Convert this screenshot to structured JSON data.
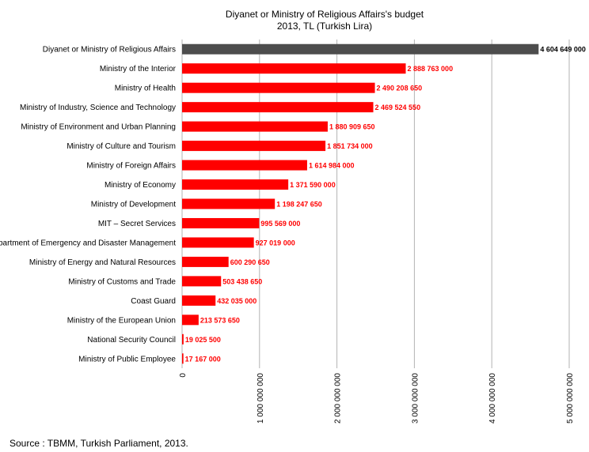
{
  "chart_data": {
    "type": "bar",
    "orientation": "horizontal",
    "title": "Diyanet or Ministry of Religious Affairs's budget",
    "subtitle": "2013, TL (Turkish Lira)",
    "xlim": [
      0,
      5000000000
    ],
    "grid": true,
    "legend": "none",
    "x_ticks": [
      {
        "value": 0,
        "label": "0"
      },
      {
        "value": 1000000000,
        "label": "1 000 000 000"
      },
      {
        "value": 2000000000,
        "label": "2 000 000 000"
      },
      {
        "value": 3000000000,
        "label": "3 000 000 000"
      },
      {
        "value": 4000000000,
        "label": "4 000 000 000"
      },
      {
        "value": 5000000000,
        "label": "5 000 000 000"
      }
    ],
    "bars": [
      {
        "category": "Diyanet or Ministry of Religious Affairs",
        "value": 4604649000,
        "label": "4 604 649 000",
        "color": "#4d4d4d",
        "label_color": "#000000"
      },
      {
        "category": "Ministry of the Interior",
        "value": 2888763000,
        "label": "2 888 763 000",
        "color": "#ff0000",
        "label_color": "#ff0000"
      },
      {
        "category": "Ministry of Health",
        "value": 2490208650,
        "label": "2 490 208 650",
        "color": "#ff0000",
        "label_color": "#ff0000"
      },
      {
        "category": "Ministry of Industry, Science and Technology",
        "value": 2469524550,
        "label": "2 469 524 550",
        "color": "#ff0000",
        "label_color": "#ff0000"
      },
      {
        "category": "Ministry of Environment and Urban Planning",
        "value": 1880909650,
        "label": "1 880 909 650",
        "color": "#ff0000",
        "label_color": "#ff0000"
      },
      {
        "category": "Ministry of Culture and Tourism",
        "value": 1851734000,
        "label": "1 851 734 000",
        "color": "#ff0000",
        "label_color": "#ff0000"
      },
      {
        "category": "Ministry of Foreign Affairs",
        "value": 1614984000,
        "label": "1 614 984 000",
        "color": "#ff0000",
        "label_color": "#ff0000"
      },
      {
        "category": "Ministry of Economy",
        "value": 1371590000,
        "label": "1 371 590 000",
        "color": "#ff0000",
        "label_color": "#ff0000"
      },
      {
        "category": "Ministry of Development",
        "value": 1198247650,
        "label": "1 198 247 650",
        "color": "#ff0000",
        "label_color": "#ff0000"
      },
      {
        "category": "MIT – Secret Services",
        "value": 995569000,
        "label": "995 569 000",
        "color": "#ff0000",
        "label_color": "#ff0000"
      },
      {
        "category": "Department of Emergency and Disaster Management",
        "value": 927019000,
        "label": "927 019 000",
        "color": "#ff0000",
        "label_color": "#ff0000"
      },
      {
        "category": "Ministry of Energy and Natural Resources",
        "value": 600290650,
        "label": "600 290 650",
        "color": "#ff0000",
        "label_color": "#ff0000"
      },
      {
        "category": "Ministry of Customs and Trade",
        "value": 503438650,
        "label": "503 438 650",
        "color": "#ff0000",
        "label_color": "#ff0000"
      },
      {
        "category": "Coast Guard",
        "value": 432035000,
        "label": "432 035 000",
        "color": "#ff0000",
        "label_color": "#ff0000"
      },
      {
        "category": "Ministry of the European Union",
        "value": 213573650,
        "label": "213 573 650",
        "color": "#ff0000",
        "label_color": "#ff0000"
      },
      {
        "category": "National Security Council",
        "value": 19025500,
        "label": "19 025 500",
        "color": "#ff0000",
        "label_color": "#ff0000"
      },
      {
        "category": "Ministry of Public Employee",
        "value": 17167000,
        "label": "17 167 000",
        "color": "#ff0000",
        "label_color": "#ff0000"
      }
    ]
  },
  "source_text": "Source : TBMM, Turkish Parliament, 2013."
}
